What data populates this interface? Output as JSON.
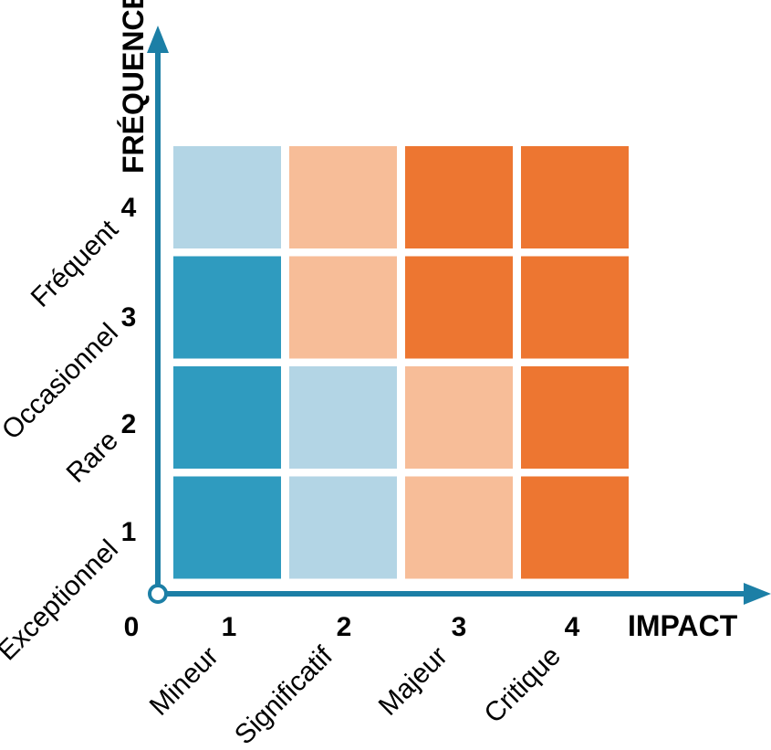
{
  "axes": {
    "y_title": "FRÉQUENCE",
    "x_title": "IMPACT",
    "origin": "0",
    "colors": {
      "axis": "#1c7fa6"
    }
  },
  "rows": [
    {
      "num": "4",
      "label": "Fréquent"
    },
    {
      "num": "3",
      "label": "Occasionnel"
    },
    {
      "num": "2",
      "label": "Rare"
    },
    {
      "num": "1",
      "label": "Exceptionnel"
    }
  ],
  "cols": [
    {
      "num": "1",
      "label": "Mineur"
    },
    {
      "num": "2",
      "label": "Significatif"
    },
    {
      "num": "3",
      "label": "Majeur"
    },
    {
      "num": "4",
      "label": "Critique"
    }
  ],
  "palette": {
    "blue": "#2f9bbf",
    "light_blue": "#b3d5e5",
    "light_orange": "#f7bd98",
    "orange": "#ed7631"
  },
  "grid": [
    [
      "light_blue",
      "light_orange",
      "orange",
      "orange"
    ],
    [
      "blue",
      "light_orange",
      "orange",
      "orange"
    ],
    [
      "blue",
      "light_blue",
      "light_orange",
      "orange"
    ],
    [
      "blue",
      "light_blue",
      "light_orange",
      "orange"
    ]
  ]
}
